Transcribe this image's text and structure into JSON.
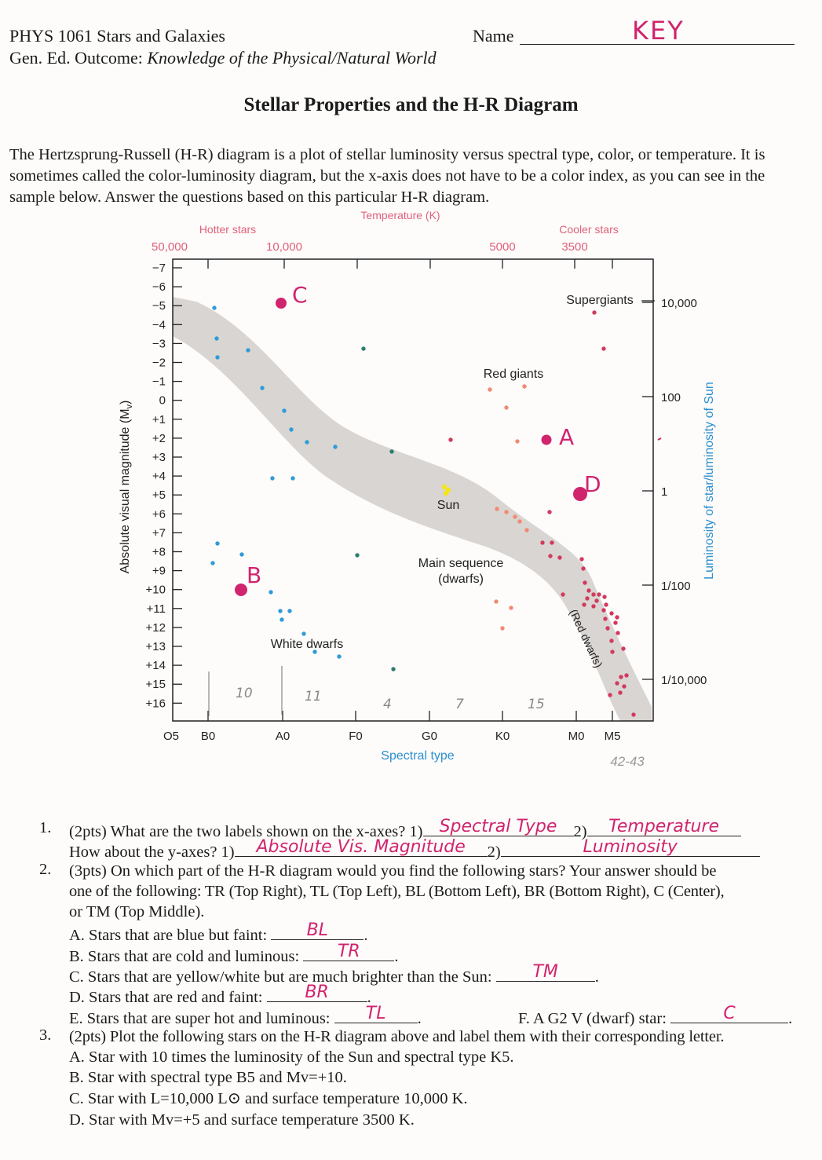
{
  "header": {
    "course": "PHYS 1061 Stars and Galaxies",
    "outcome_label": "Gen. Ed. Outcome:",
    "outcome": "Knowledge of the Physical/Natural World",
    "name_label": "Name",
    "name_value": "KEY"
  },
  "title": "Stellar Properties and the H-R Diagram",
  "intro": "The Hertzsprung-Russell (H-R) diagram is a plot of stellar luminosity versus spectral type, color, or temperature.  It is sometimes called the color-luminosity diagram, but the x-axis does not have to be a color index, as you can see in the sample below.  Answer the questions based on this particular H-R diagram.",
  "diagram": {
    "top_axis_title": "Temperature (K)",
    "hotter": "Hotter stars",
    "cooler": "Cooler stars",
    "temp_ticks": [
      "50,000",
      "10,000",
      "5000",
      "3500"
    ],
    "left_axis_title": "Absolute visual magnitude (M",
    "left_axis_sub": "v",
    "left_axis_end": ")",
    "mag_ticks": [
      "−7",
      "−6",
      "−5",
      "−4",
      "−3",
      "−2",
      "−1",
      "0",
      "+1",
      "+2",
      "+3",
      "+4",
      "+5",
      "+6",
      "+7",
      "+8",
      "+9",
      "+10",
      "+11",
      "+12",
      "+13",
      "+14",
      "+15",
      "+16"
    ],
    "right_axis_title": "Luminosity of star/luminosity of Sun",
    "lum_ticks": [
      "10,000",
      "100",
      "1",
      "1/100",
      "1/10,000"
    ],
    "spec_ticks": [
      "O5",
      "B0",
      "A0",
      "F0",
      "G0",
      "K0",
      "M0",
      "M5"
    ],
    "bottom_axis_title": "Spectral type",
    "page_ref": "42-43",
    "labels": {
      "supergiants": "Supergiants",
      "red_giants": "Red giants",
      "sun": "Sun",
      "main_sequence": "Main sequence",
      "dwarfs": "(dwarfs)",
      "red_dwarfs": "(Red dwarfs)",
      "white_dwarfs": "White dwarfs"
    },
    "plotted_letters": [
      "C",
      "A",
      "D",
      "B"
    ],
    "handwritten_counts": [
      "10",
      "11",
      "4",
      "7",
      "15"
    ]
  },
  "questions": {
    "q1": {
      "num": "1.",
      "text": "(2pts)  What are the two labels shown on the x-axes?  1)",
      "ans1": "Spectral Type",
      "sep": "2)",
      "ans2": "Temperature",
      "line2": "How about the y-axes?  1)",
      "ans3": "Absolute Vis. Magnitude",
      "sep2": "2)",
      "ans4": "Luminosity"
    },
    "q2": {
      "num": "2.",
      "line1": "(3pts)  On which part of the H-R diagram would you find the following stars?  Your answer should be",
      "line2": "one of the following:  TR (Top Right), TL (Top Left), BL (Bottom Left), BR (Bottom Right), C (Center),",
      "line3": "or TM (Top Middle).",
      "a": "A. Stars that are blue but faint:",
      "a_ans": "BL",
      "b": "B. Stars that are cold and luminous:",
      "b_ans": "TR",
      "c": "C. Stars that are yellow/white but are much brighter than the Sun:",
      "c_ans": "TM",
      "d": "D. Stars that are red and faint:",
      "d_ans": "BR",
      "e": "E. Stars that are super hot and luminous:",
      "e_ans": "TL",
      "f": "F.  A G2 V  (dwarf) star:",
      "f_ans": "C"
    },
    "q3": {
      "num": "3.",
      "line1": "(2pts)  Plot the following stars on the H-R diagram above and label them with their corresponding letter.",
      "a": "A. Star with 10 times the luminosity of  the Sun and spectral type K5.",
      "b": "B. Star with spectral type B5 and Mv=+10.",
      "c": "C. Star with L=10,000 L⊙ and surface temperature 10,000 K.",
      "d": "D. Star with Mv=+5 and surface temperature 3500 K."
    }
  },
  "colors": {
    "text": "#1b1b1b",
    "ink": "#d0246e",
    "band": "#d9d5d2",
    "blue_star": "#2f9bd8",
    "green_star": "#2e7d6e",
    "red_star": "#d23a5e",
    "orange_star": "#f08a72",
    "sun": "#f2e51a",
    "axis_label_pink": "#e0607a",
    "axis_label_blue": "#2d8fd0"
  }
}
